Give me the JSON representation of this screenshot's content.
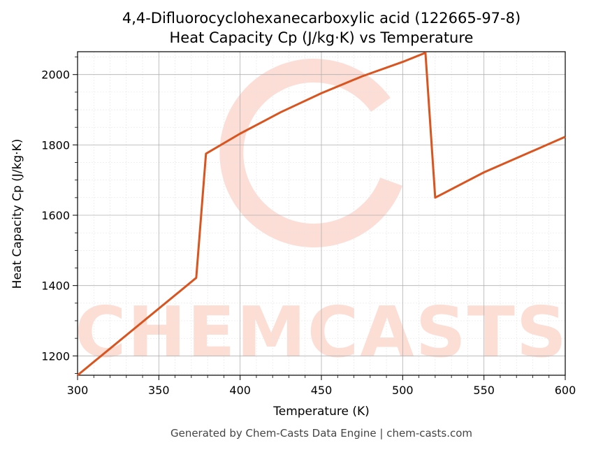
{
  "chart_data": {
    "type": "line",
    "title_line1": "4,4-Difluorocyclohexanecarboxylic acid (122665-97-8)",
    "title_line2": "Heat Capacity Cp (J/kg·K) vs Temperature",
    "xlabel": "Temperature (K)",
    "ylabel": "Heat Capacity Cp (J/kg·K)",
    "xlim": [
      300,
      600
    ],
    "ylim": [
      1145,
      2065
    ],
    "x_ticks": [
      300,
      350,
      400,
      450,
      500,
      550,
      600
    ],
    "y_ticks": [
      1200,
      1400,
      1600,
      1800,
      2000
    ],
    "grid": true,
    "line_color": "#d9541e",
    "series": [
      {
        "x": [
          300,
          373,
          379,
          400,
          425,
          450,
          475,
          500,
          514,
          520,
          550,
          600
        ],
        "y": [
          1145,
          1422,
          1775,
          1832,
          1893,
          1947,
          1995,
          2036,
          2062,
          1650,
          1722,
          1823
        ]
      }
    ]
  },
  "watermark": {
    "text": "CHEMCASTS",
    "color": "#fbd3c8"
  },
  "footer": "Generated by Chem-Casts Data Engine | chem-casts.com"
}
